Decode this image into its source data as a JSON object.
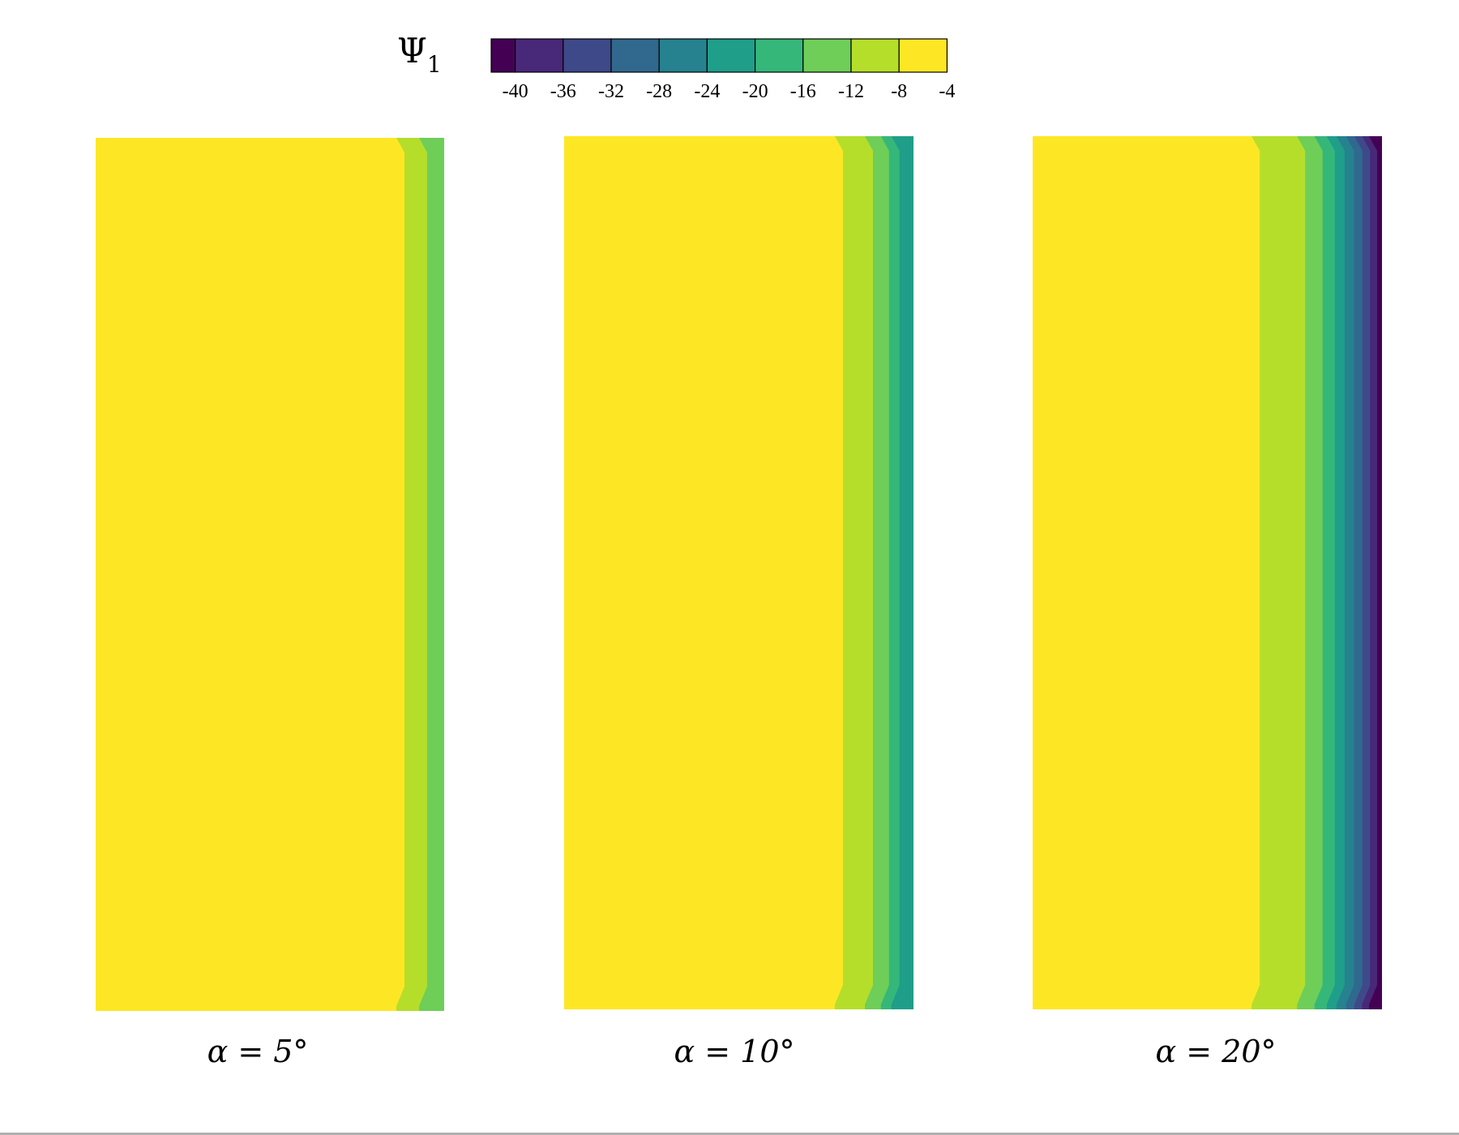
{
  "chart_data": {
    "type": "heatmap",
    "colorbar": {
      "label_symbol": "Ψ",
      "label_subscript": "1",
      "levels": [
        -42,
        -40,
        -36,
        -32,
        -28,
        -24,
        -20,
        -16,
        -12,
        -8,
        -4,
        -2
      ],
      "tick_labels": [
        "-40",
        "-36",
        "-32",
        "-28",
        "-24",
        "-20",
        "-16",
        "-12",
        "-8",
        "-4"
      ],
      "colors": [
        "#440154",
        "#482878",
        "#3e4989",
        "#31688e",
        "#26828e",
        "#1f9e89",
        "#35b779",
        "#6ece58",
        "#b5de2b",
        "#fde725"
      ]
    },
    "panels": [
      {
        "caption": "α = 5°",
        "bands": [
          {
            "level": "-4",
            "color": "#fde725",
            "extent": 0.886
          },
          {
            "level": "-8",
            "color": "#b5de2b",
            "extent": 0.065
          },
          {
            "level": "-12",
            "color": "#6ece58",
            "extent": 0.049
          }
        ]
      },
      {
        "caption": "α = 10°",
        "bands": [
          {
            "level": "-4",
            "color": "#fde725",
            "extent": 0.798
          },
          {
            "level": "-8",
            "color": "#b5de2b",
            "extent": 0.086
          },
          {
            "level": "-12",
            "color": "#6ece58",
            "extent": 0.046
          },
          {
            "level": "-16",
            "color": "#35b779",
            "extent": 0.03
          },
          {
            "level": "-20",
            "color": "#1f9e89",
            "extent": 0.04
          }
        ]
      },
      {
        "caption": "α = 20°",
        "bands": [
          {
            "level": "-4",
            "color": "#fde725",
            "extent": 0.65
          },
          {
            "level": "-8",
            "color": "#b5de2b",
            "extent": 0.13
          },
          {
            "level": "-12",
            "color": "#6ece58",
            "extent": 0.05
          },
          {
            "level": "-16",
            "color": "#35b779",
            "extent": 0.035
          },
          {
            "level": "-20",
            "color": "#1f9e89",
            "extent": 0.028
          },
          {
            "level": "-24",
            "color": "#26828e",
            "extent": 0.027
          },
          {
            "level": "-28",
            "color": "#31688e",
            "extent": 0.024
          },
          {
            "level": "-32",
            "color": "#3e4989",
            "extent": 0.022
          },
          {
            "level": "-36",
            "color": "#482878",
            "extent": 0.02
          },
          {
            "level": "-40",
            "color": "#440154",
            "extent": 0.014
          }
        ]
      }
    ]
  }
}
